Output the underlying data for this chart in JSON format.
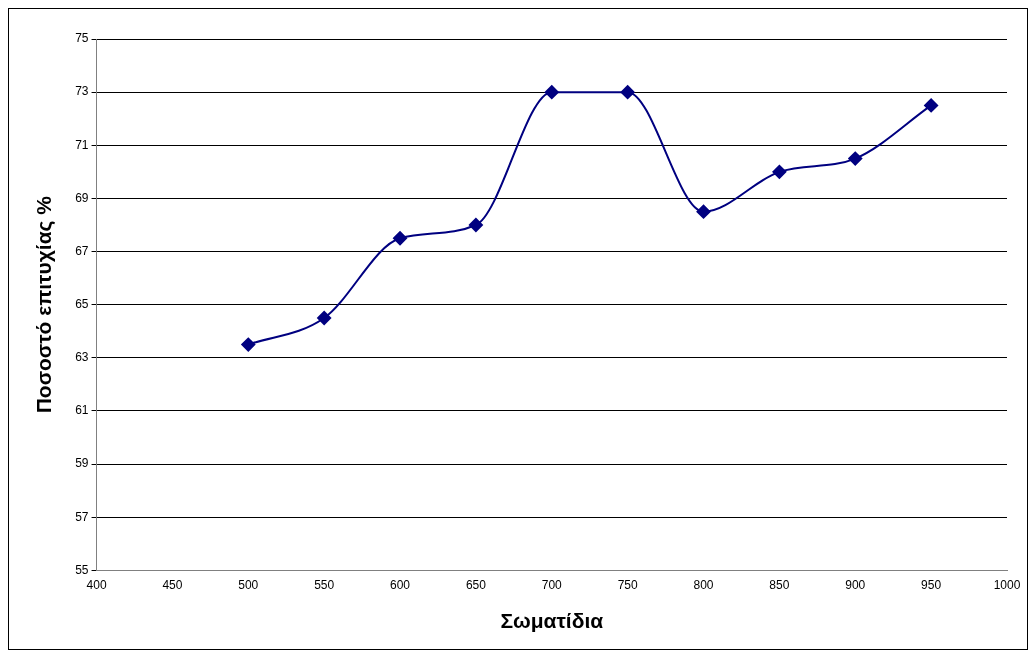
{
  "chart_data": {
    "type": "line",
    "xlabel": "Σωματίδια",
    "ylabel": "Ποσοστό επιτυχίας %",
    "x": [
      500,
      550,
      600,
      650,
      700,
      750,
      800,
      850,
      900,
      950
    ],
    "series": [
      {
        "color": "#000080",
        "values": [
          63.5,
          64.5,
          67.5,
          68,
          73,
          73,
          68.5,
          70,
          70.5,
          72.5
        ]
      }
    ],
    "xlim": [
      400,
      1000
    ],
    "xticks": [
      400,
      450,
      500,
      550,
      600,
      650,
      700,
      750,
      800,
      850,
      900,
      950,
      1000
    ],
    "ylim": [
      55,
      75
    ],
    "yticks": [
      55,
      57,
      59,
      61,
      63,
      65,
      67,
      69,
      71,
      73,
      75
    ],
    "grid": "y",
    "legend": false,
    "marker": "diamond",
    "line_style": "solid"
  }
}
